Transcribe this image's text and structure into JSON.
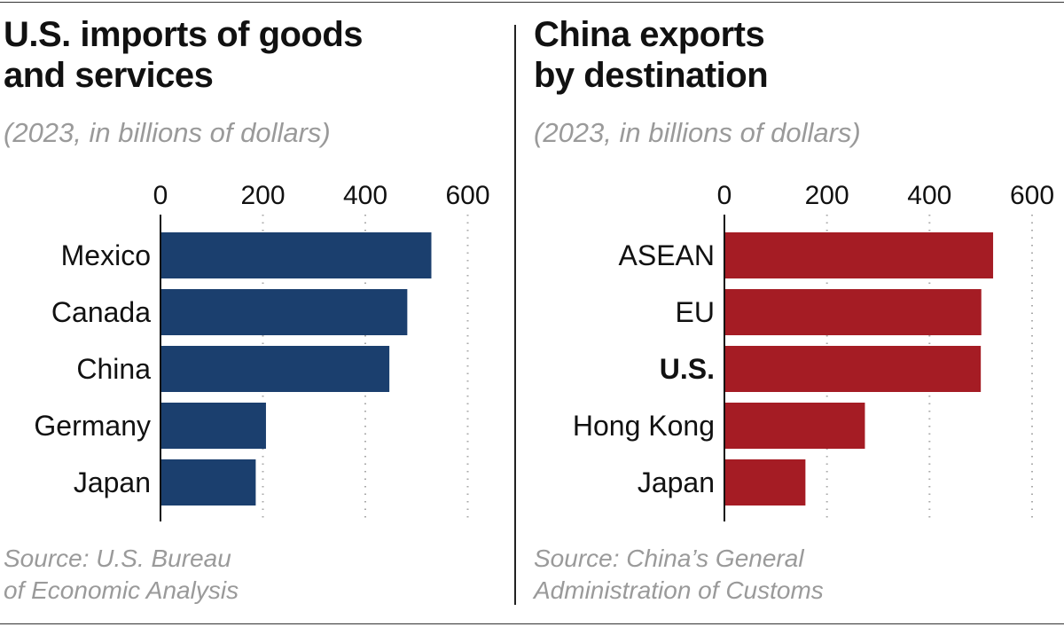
{
  "chart_data": [
    {
      "type": "bar",
      "orientation": "horizontal",
      "title": "U.S. imports of goods and services",
      "subtitle": "(2023, in billions of dollars)",
      "categories": [
        "Mexico",
        "Canada",
        "China",
        "Germany",
        "Japan"
      ],
      "values": [
        529,
        482,
        447,
        206,
        186
      ],
      "xlim": [
        0,
        600
      ],
      "xticks": [
        "0",
        "200",
        "400",
        "600"
      ],
      "tick_values": [
        0,
        200,
        400,
        600
      ],
      "grid": true,
      "color": "#1b3f6e",
      "source": [
        "Source: U.S. Bureau",
        "of Economic Analysis"
      ]
    },
    {
      "type": "bar",
      "orientation": "horizontal",
      "title": "China exports by destination",
      "subtitle": "(2023, in billions of dollars)",
      "categories": [
        "ASEAN",
        "EU",
        "U.S.",
        "Hong Kong",
        "Japan"
      ],
      "highlight": "U.S.",
      "values": [
        524,
        501,
        500,
        274,
        158
      ],
      "xlim": [
        0,
        600
      ],
      "xticks": [
        "0",
        "200",
        "400",
        "600"
      ],
      "tick_values": [
        0,
        200,
        400,
        600
      ],
      "grid": true,
      "color": "#a51c24",
      "source": [
        "Source: China’s General",
        "Administration of Customs"
      ]
    }
  ],
  "titles": [
    [
      "U.S. imports of goods",
      "and services"
    ],
    [
      "China exports",
      "by destination"
    ]
  ]
}
